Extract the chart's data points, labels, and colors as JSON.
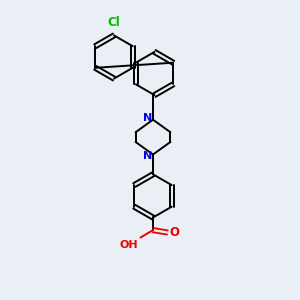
{
  "background_color": "#eaeff5",
  "bond_color": "#000000",
  "nitrogen_color": "#0000ee",
  "oxygen_color": "#ee0000",
  "chlorine_color": "#00bb00",
  "figsize": [
    3.0,
    3.0
  ],
  "dpi": 100,
  "xlim": [
    0,
    10
  ],
  "ylim": [
    0,
    10
  ]
}
